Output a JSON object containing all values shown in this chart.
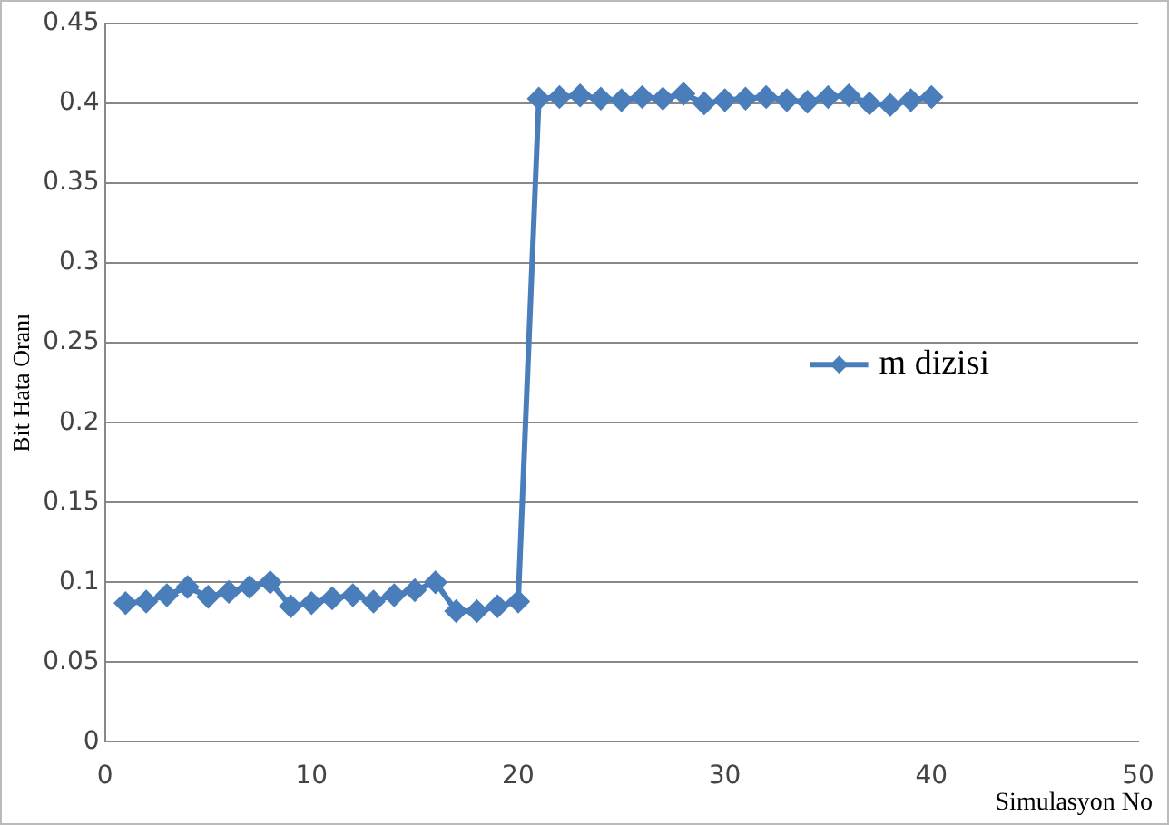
{
  "chart_data": {
    "type": "line",
    "xlabel": "Simulasyon No",
    "ylabel": "Bit Hata Oranı",
    "x": [
      1,
      2,
      3,
      4,
      5,
      6,
      7,
      8,
      9,
      10,
      11,
      12,
      13,
      14,
      15,
      16,
      17,
      18,
      19,
      20,
      21,
      22,
      23,
      24,
      25,
      26,
      27,
      28,
      29,
      30,
      31,
      32,
      33,
      34,
      35,
      36,
      37,
      38,
      39,
      40
    ],
    "series": [
      {
        "name": "m dizisi",
        "color": "#4a7ebb",
        "values": [
          0.087,
          0.088,
          0.092,
          0.097,
          0.091,
          0.094,
          0.097,
          0.1,
          0.085,
          0.087,
          0.09,
          0.092,
          0.088,
          0.092,
          0.095,
          0.1,
          0.082,
          0.082,
          0.085,
          0.088,
          0.403,
          0.404,
          0.405,
          0.403,
          0.402,
          0.404,
          0.403,
          0.406,
          0.4,
          0.402,
          0.403,
          0.404,
          0.402,
          0.401,
          0.404,
          0.405,
          0.4,
          0.399,
          0.402,
          0.404
        ]
      }
    ],
    "xlim": [
      0,
      50
    ],
    "xticks": [
      0,
      10,
      20,
      30,
      40,
      50
    ],
    "ylim": [
      0,
      0.45
    ],
    "yticks": [
      0,
      0.05,
      0.1,
      0.15,
      0.2,
      0.25,
      0.3,
      0.35,
      0.4,
      0.45
    ],
    "grid": "y",
    "legend": "right",
    "marker": "diamond",
    "line_style": "solid"
  }
}
